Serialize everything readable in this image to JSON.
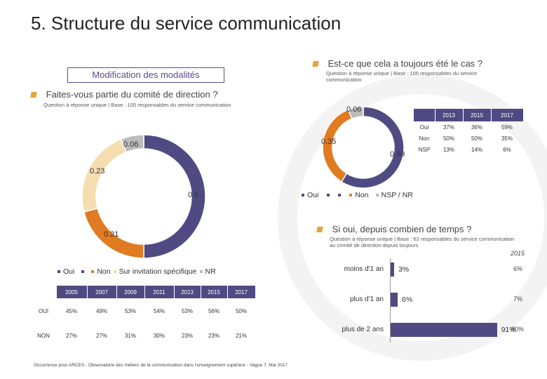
{
  "title": "5. Structure du service communication",
  "modification_box": "Modification des modalités",
  "q1": {
    "title": "Faites-vous partie du comité de direction ?",
    "subtitle": "Question à réponse unique | Base : 105 responsables du service communication",
    "donut_labels": [
      "0.06",
      "0.23",
      "0.5",
      "0.21"
    ],
    "legend": [
      "Oui",
      "Non",
      "Sur invitation spécifique",
      "NR"
    ],
    "colors": [
      "#4f4a82",
      "#e07b22",
      "#f5ddb0",
      "#bbbbbb"
    ],
    "values": [
      0.5,
      0.21,
      0.23,
      0.06
    ],
    "table": {
      "years": [
        "2005",
        "2007",
        "2009",
        "2011",
        "2013",
        "2015",
        "2017"
      ],
      "rows": [
        {
          "label": "OUI",
          "values": [
            "45%",
            "49%",
            "53%",
            "54%",
            "53%",
            "56%",
            "50%"
          ]
        },
        {
          "label": "NON",
          "values": [
            "27%",
            "27%",
            "31%",
            "30%",
            "23%",
            "23%",
            "21%"
          ]
        }
      ]
    }
  },
  "q2": {
    "title": "Est-ce que cela a toujours été le cas ?",
    "subtitle": "Question à réponse unique | Base : 105 responsables du service communication",
    "donut_labels": [
      "0.06",
      "0.35",
      "0.59"
    ],
    "values": [
      0.59,
      0.35,
      0.06
    ],
    "colors": [
      "#4f4a82",
      "#e07b22",
      "#bbbbbb"
    ],
    "legend": [
      "Oui",
      "Non",
      "NSP / NR"
    ],
    "table": {
      "years": [
        "2013",
        "2015",
        "2017"
      ],
      "rows": [
        {
          "label": "Oui",
          "values": [
            "37%",
            "36%",
            "59%"
          ]
        },
        {
          "label": "Non",
          "values": [
            "50%",
            "50%",
            "35%"
          ]
        },
        {
          "label": "NSP",
          "values": [
            "13%",
            "14%",
            "6%"
          ]
        }
      ]
    }
  },
  "q3": {
    "title": "Si oui, depuis combien de temps ?",
    "subtitle": "Question à réponse unique | Base : 62 responsables du service communication au comité de direction depuis toujours",
    "compare_year": "2015",
    "bars": [
      {
        "label": "moins d'1 an",
        "value": 3,
        "value_label": "3%",
        "compare": "6%"
      },
      {
        "label": "plus d'1 an",
        "value": 6,
        "value_label": "6%",
        "compare": "7%"
      },
      {
        "label": "plus de 2 ans",
        "value": 91,
        "value_label": "91%",
        "compare": "80%"
      }
    ]
  },
  "footer": "Occurrence pour ARCES - Observatoire des métiers de la communication dans l'enseignement supérieur - Vague 7, Mai 2017"
}
